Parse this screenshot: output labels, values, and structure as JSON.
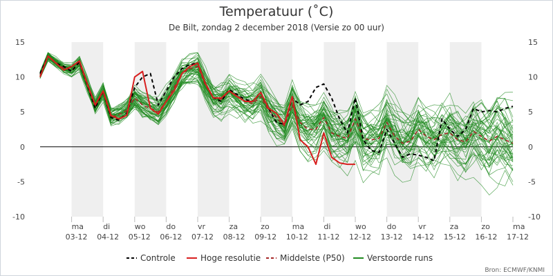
{
  "title": "Temperatuur (˚C)",
  "subtitle": "De Bilt, zondag 2 december 2018 (Versie zo 00 uur)",
  "source": "Bron: ECMWF/KNMI",
  "colors": {
    "control": "#000000",
    "hires": "#d81e1e",
    "median": "#a52525",
    "ensemble": "#1f8a1f",
    "band": "#efefef",
    "zero_line": "#000000"
  },
  "chart_data": {
    "type": "line",
    "x_unit": "hours since 2018-12-02 00:00",
    "xlim": [
      0,
      360
    ],
    "ylim": [
      -10,
      15
    ],
    "y_ticks": [
      -10,
      -5,
      0,
      5,
      10,
      15
    ],
    "x_ticks": [
      {
        "day": "ma",
        "date": "03-12",
        "x": 24
      },
      {
        "day": "di",
        "date": "04-12",
        "x": 48
      },
      {
        "day": "wo",
        "date": "05-12",
        "x": 72
      },
      {
        "day": "do",
        "date": "06-12",
        "x": 96
      },
      {
        "day": "vr",
        "date": "07-12",
        "x": 120
      },
      {
        "day": "za",
        "date": "08-12",
        "x": 144
      },
      {
        "day": "zo",
        "date": "09-12",
        "x": 168
      },
      {
        "day": "ma",
        "date": "10-12",
        "x": 192
      },
      {
        "day": "di",
        "date": "11-12",
        "x": 216
      },
      {
        "day": "wo",
        "date": "12-12",
        "x": 240
      },
      {
        "day": "do",
        "date": "13-12",
        "x": 264
      },
      {
        "day": "vr",
        "date": "14-12",
        "x": 288
      },
      {
        "day": "za",
        "date": "15-12",
        "x": 312
      },
      {
        "day": "zo",
        "date": "16-12",
        "x": 336
      },
      {
        "day": "ma",
        "date": "17-12",
        "x": 360
      }
    ],
    "legend": [
      "Controle",
      "Hoge resolutie",
      "Middelste (P50)",
      "Verstoorde runs"
    ],
    "series": [
      {
        "name": "Controle",
        "style": "dashed",
        "x": [
          0,
          6,
          12,
          18,
          24,
          30,
          36,
          42,
          48,
          54,
          60,
          66,
          72,
          78,
          84,
          90,
          96,
          102,
          108,
          114,
          120,
          126,
          132,
          138,
          144,
          150,
          156,
          162,
          168,
          174,
          180,
          186,
          192,
          198,
          204,
          210,
          216,
          222,
          228,
          234,
          240,
          246,
          252,
          258,
          264,
          270,
          276,
          282,
          288,
          294,
          300,
          306,
          312,
          318,
          324,
          330,
          336,
          342,
          348,
          354,
          360
        ],
        "y": [
          10.5,
          13,
          12,
          11.5,
          10.8,
          12.2,
          8.8,
          5.5,
          8,
          4.2,
          3.8,
          4.8,
          8.5,
          10,
          10.5,
          6,
          8,
          10,
          11.2,
          11.8,
          12,
          9,
          7,
          6.5,
          8.2,
          7.5,
          6.8,
          6.5,
          7.8,
          5.5,
          3.5,
          3.2,
          7,
          6,
          6.5,
          8.5,
          9,
          7,
          4,
          2,
          7,
          1,
          -0.5,
          -0.8,
          2.5,
          0.5,
          -1.5,
          -1,
          -1.2,
          -1.5,
          -2,
          4,
          2.5,
          1.5,
          2.5,
          5.5,
          5,
          5.2,
          5,
          5.5,
          5.8
        ]
      },
      {
        "name": "Hoge resolutie",
        "style": "solid",
        "x": [
          0,
          6,
          12,
          18,
          24,
          30,
          36,
          42,
          48,
          54,
          60,
          66,
          72,
          78,
          84,
          90,
          96,
          102,
          108,
          114,
          120,
          126,
          132,
          138,
          144,
          150,
          156,
          162,
          168,
          174,
          180,
          186,
          192,
          198,
          204,
          210,
          216,
          222,
          228,
          234,
          240
        ],
        "y": [
          10,
          13,
          12,
          11,
          11.5,
          12.3,
          9,
          6,
          8,
          4.5,
          4,
          4.5,
          10,
          10.8,
          5.5,
          4.7,
          6.5,
          8,
          10.5,
          11.5,
          12,
          9,
          7,
          7,
          8,
          7.2,
          6.5,
          6.5,
          7.8,
          5.5,
          4.8,
          3.2,
          7.2,
          1,
          0,
          -2.5,
          2,
          -1.5,
          -2.3,
          -2.5,
          -2.5
        ]
      },
      {
        "name": "Middelste (P50)",
        "style": "dashed",
        "x": [
          0,
          6,
          12,
          18,
          24,
          30,
          36,
          42,
          48,
          54,
          60,
          66,
          72,
          78,
          84,
          90,
          96,
          102,
          108,
          114,
          120,
          126,
          132,
          138,
          144,
          150,
          156,
          162,
          168,
          174,
          180,
          186,
          192,
          198,
          204,
          210,
          216,
          222,
          228,
          234,
          240,
          246,
          252,
          258,
          264,
          270,
          276,
          282,
          288,
          294,
          300,
          306,
          312,
          318,
          324,
          330,
          336,
          342,
          348,
          354,
          360
        ],
        "y": [
          10.3,
          13,
          12.1,
          11.3,
          11,
          12,
          8.8,
          5.8,
          7.8,
          4.2,
          4.6,
          5.2,
          7,
          6,
          5.5,
          5,
          6.5,
          8.5,
          10.5,
          11.2,
          11.5,
          8.8,
          7,
          6.8,
          8,
          7.3,
          6.5,
          6.2,
          7.2,
          5.2,
          4.2,
          3,
          6,
          3.5,
          2.5,
          2.5,
          4.2,
          2,
          1.5,
          1.2,
          4,
          1.2,
          1,
          1.2,
          3.5,
          1.5,
          0.5,
          0.8,
          2.5,
          1.5,
          1,
          1.8,
          2,
          1,
          0.7,
          2.2,
          1.5,
          0.8,
          1.5,
          1,
          0.5
        ]
      }
    ],
    "ensemble": {
      "name": "Verstoorde runs",
      "count": 50,
      "x_step": 6,
      "spread_note": "50 perturbed members around the median, spread growing from about 1 to 5 degrees"
    }
  }
}
